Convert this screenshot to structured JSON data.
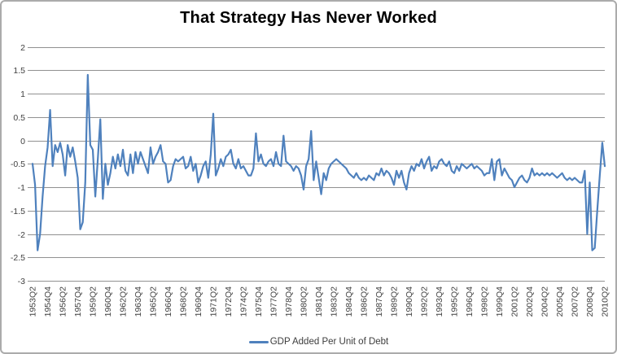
{
  "title": "That Strategy Has Never Worked",
  "legend": {
    "label": "GDP Added Per Unit of Debt"
  },
  "colors": {
    "line": "#4F81BD",
    "gridline": "#919191",
    "axis_line": "#919191",
    "axis_text": "#404040",
    "title_text": "#000000",
    "border": "#ABABAB",
    "background": "#FFFFFF"
  },
  "chart_data": {
    "type": "line",
    "series_name": "GDP Added Per Unit of Debt",
    "x_start": "1953Q2",
    "x_end": "2010Q2",
    "x_frequency": "quarterly",
    "x_tick_every_n_points": 6,
    "x_tick_labels": [
      "1953Q2",
      "1954Q4",
      "1956Q2",
      "1957Q4",
      "1959Q2",
      "1960Q4",
      "1962Q2",
      "1963Q4",
      "1965Q2",
      "1966Q4",
      "1968Q2",
      "1969Q4",
      "1971Q2",
      "1972Q4",
      "1974Q2",
      "1975Q4",
      "1977Q2",
      "1978Q4",
      "1980Q2",
      "1981Q4",
      "1983Q2",
      "1984Q4",
      "1986Q2",
      "1987Q4",
      "1989Q2",
      "1990Q4",
      "1992Q2",
      "1993Q4",
      "1995Q2",
      "1996Q4",
      "1998Q2",
      "1999Q4",
      "2001Q2",
      "2002Q4",
      "2004Q2",
      "2005Q4",
      "2007Q2",
      "2008Q4",
      "2010Q2"
    ],
    "y_tick_labels": [
      "2",
      "1.5",
      "1",
      "0.5",
      "0",
      "-0.5",
      "-1",
      "-1.5",
      "-2",
      "-2.5",
      "-3"
    ],
    "y_ticks": [
      2,
      1.5,
      1,
      0.5,
      0,
      -0.5,
      -1,
      -1.5,
      -2,
      -2.5,
      -3
    ],
    "ylim": [
      -3,
      2
    ],
    "grid": "horizontal",
    "legend_position": "bottom",
    "values": [
      -0.5,
      -0.95,
      -2.35,
      -2.0,
      -1.2,
      -0.55,
      -0.15,
      0.65,
      -0.55,
      -0.1,
      -0.25,
      -0.05,
      -0.3,
      -0.75,
      -0.1,
      -0.35,
      -0.15,
      -0.45,
      -0.8,
      -1.9,
      -1.75,
      -0.9,
      1.4,
      -0.1,
      -0.2,
      -1.2,
      -0.4,
      0.45,
      -1.25,
      -0.5,
      -0.95,
      -0.7,
      -0.35,
      -0.6,
      -0.3,
      -0.55,
      -0.2,
      -0.65,
      -0.75,
      -0.3,
      -0.7,
      -0.25,
      -0.5,
      -0.25,
      -0.4,
      -0.55,
      -0.7,
      -0.15,
      -0.5,
      -0.35,
      -0.25,
      -0.1,
      -0.45,
      -0.5,
      -0.9,
      -0.85,
      -0.55,
      -0.4,
      -0.45,
      -0.4,
      -0.35,
      -0.6,
      -0.55,
      -0.35,
      -0.65,
      -0.5,
      -0.9,
      -0.75,
      -0.55,
      -0.45,
      -0.8,
      -0.3,
      0.57,
      -0.75,
      -0.6,
      -0.4,
      -0.55,
      -0.35,
      -0.3,
      -0.2,
      -0.5,
      -0.6,
      -0.4,
      -0.6,
      -0.55,
      -0.65,
      -0.75,
      -0.75,
      -0.6,
      0.15,
      -0.45,
      -0.3,
      -0.5,
      -0.55,
      -0.45,
      -0.4,
      -0.55,
      -0.25,
      -0.5,
      -0.55,
      0.1,
      -0.45,
      -0.5,
      -0.55,
      -0.65,
      -0.55,
      -0.6,
      -0.75,
      -1.05,
      -0.55,
      -0.4,
      0.2,
      -0.85,
      -0.45,
      -0.8,
      -1.15,
      -0.7,
      -0.85,
      -0.6,
      -0.5,
      -0.45,
      -0.4,
      -0.45,
      -0.5,
      -0.55,
      -0.6,
      -0.7,
      -0.75,
      -0.8,
      -0.7,
      -0.8,
      -0.85,
      -0.8,
      -0.85,
      -0.75,
      -0.8,
      -0.85,
      -0.7,
      -0.75,
      -0.6,
      -0.75,
      -0.65,
      -0.7,
      -0.8,
      -0.95,
      -0.65,
      -0.8,
      -0.65,
      -0.9,
      -1.05,
      -0.7,
      -0.55,
      -0.65,
      -0.5,
      -0.55,
      -0.4,
      -0.6,
      -0.45,
      -0.35,
      -0.65,
      -0.55,
      -0.6,
      -0.45,
      -0.4,
      -0.5,
      -0.55,
      -0.45,
      -0.65,
      -0.7,
      -0.55,
      -0.65,
      -0.5,
      -0.55,
      -0.6,
      -0.55,
      -0.5,
      -0.6,
      -0.55,
      -0.6,
      -0.65,
      -0.75,
      -0.7,
      -0.7,
      -0.4,
      -0.85,
      -0.45,
      -0.4,
      -0.75,
      -0.6,
      -0.7,
      -0.8,
      -0.85,
      -1.0,
      -0.9,
      -0.8,
      -0.75,
      -0.85,
      -0.9,
      -0.8,
      -0.6,
      -0.75,
      -0.7,
      -0.75,
      -0.7,
      -0.75,
      -0.7,
      -0.75,
      -0.7,
      -0.75,
      -0.8,
      -0.75,
      -0.7,
      -0.8,
      -0.85,
      -0.8,
      -0.85,
      -0.8,
      -0.85,
      -0.9,
      -0.9,
      -0.65,
      -2.0,
      -0.9,
      -2.35,
      -2.3,
      -1.5,
      -0.75,
      -0.05,
      -0.55
    ]
  }
}
